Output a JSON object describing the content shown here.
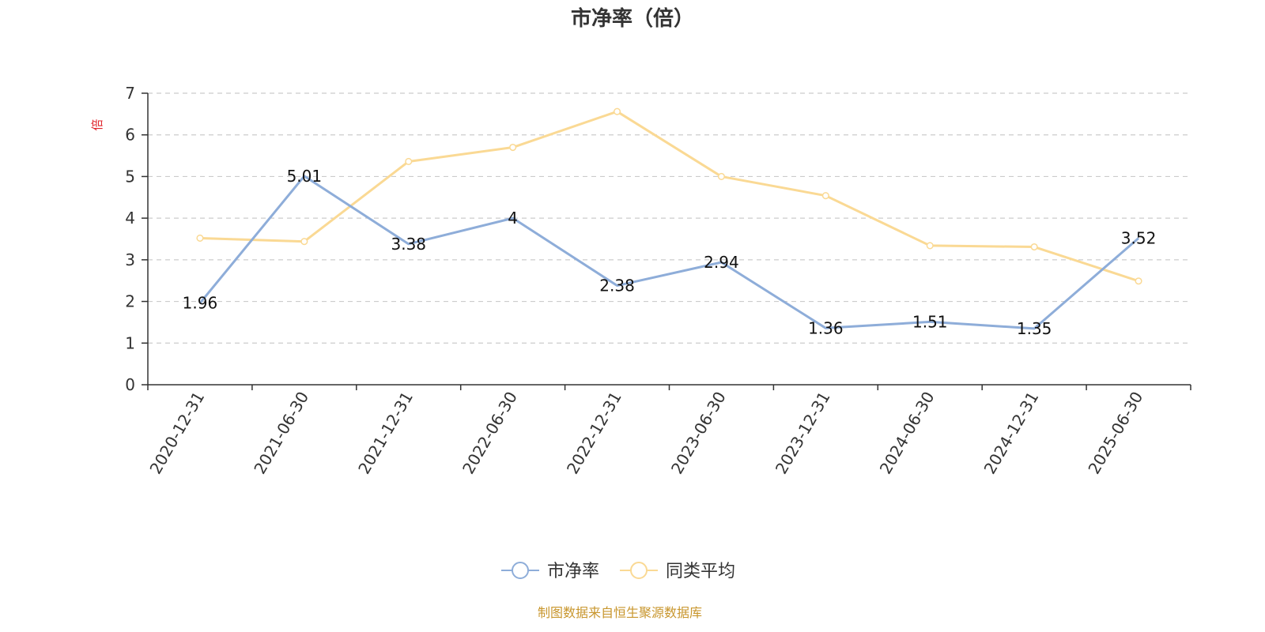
{
  "colors": {
    "series_pb": "#8EADD9",
    "series_avg": "#FAD994",
    "axis": "#333333",
    "grid": "#CCCCCC",
    "y_unit": "#E0242B",
    "source": "#C8962D"
  },
  "chart_data": {
    "type": "line",
    "title": "市净率（倍）",
    "y_unit": "倍",
    "ylim": [
      0,
      7
    ],
    "y_ticks": [
      "0",
      "1",
      "2",
      "3",
      "4",
      "5",
      "6",
      "7"
    ],
    "categories": [
      "2020-12-31",
      "2021-06-30",
      "2021-12-31",
      "2022-06-30",
      "2022-12-31",
      "2023-06-30",
      "2023-12-31",
      "2024-06-30",
      "2024-12-31",
      "2025-06-30"
    ],
    "grid": true,
    "legend_position": "bottom-center",
    "series": [
      {
        "name": "市净率",
        "values": [
          1.96,
          5.01,
          3.38,
          4,
          2.38,
          2.94,
          1.36,
          1.51,
          1.35,
          3.52
        ],
        "labels": [
          "1.96",
          "5.01",
          "3.38",
          "4",
          "2.38",
          "2.94",
          "1.36",
          "1.51",
          "1.35",
          "3.52"
        ]
      },
      {
        "name": "同类平均",
        "values": [
          3.52,
          3.44,
          5.36,
          5.7,
          6.56,
          5.0,
          4.54,
          3.34,
          3.31,
          2.49
        ]
      }
    ]
  },
  "source_note": "制图数据来自恒生聚源数据库"
}
